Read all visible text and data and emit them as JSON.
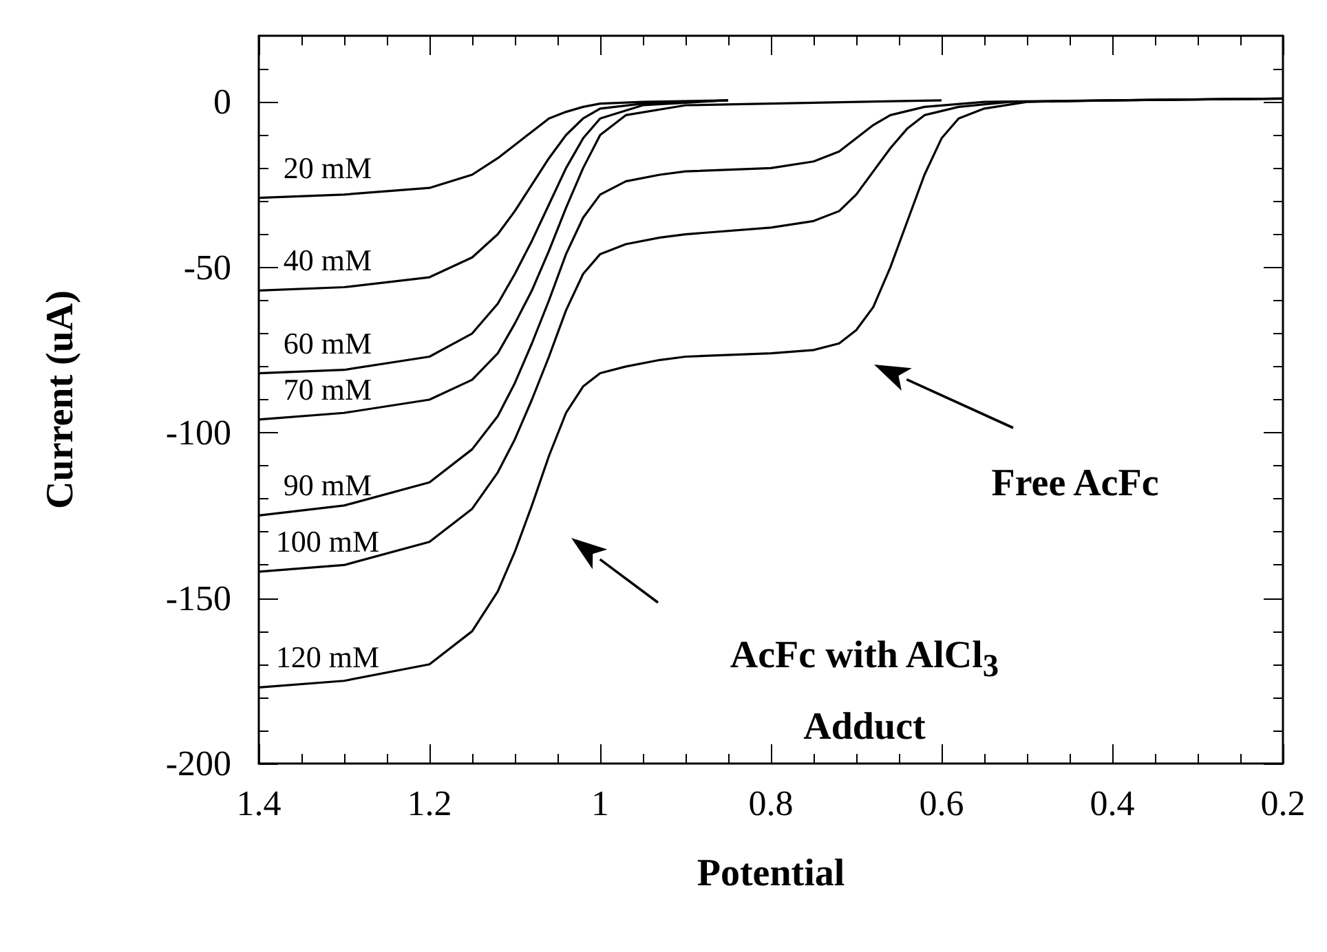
{
  "chart_data": {
    "type": "line",
    "xlabel": "Potential",
    "ylabel": "Current (uA)",
    "xlim": [
      1.4,
      0.2
    ],
    "xticks": [
      1.4,
      1.2,
      1,
      0.8,
      0.6,
      0.4,
      0.2
    ],
    "ylim": [
      -200,
      20
    ],
    "yticks": [
      -200,
      -150,
      -100,
      -50,
      0
    ],
    "grid": false,
    "legend": false,
    "marker": "none",
    "line_style": "solid",
    "series": [
      {
        "name": "20 mM",
        "color": "#000000",
        "x": [
          1.4,
          1.3,
          1.2,
          1.15,
          1.12,
          1.1,
          1.08,
          1.06,
          1.04,
          1.02,
          1.0,
          0.95,
          0.85
        ],
        "values": [
          -29,
          -28,
          -26,
          -22,
          -17,
          -13,
          -9,
          -5,
          -3,
          -1.5,
          -0.5,
          0,
          0.5
        ]
      },
      {
        "name": "40 mM",
        "color": "#000000",
        "x": [
          1.4,
          1.3,
          1.2,
          1.15,
          1.12,
          1.1,
          1.08,
          1.06,
          1.04,
          1.02,
          1.0,
          0.95,
          0.85
        ],
        "values": [
          -57,
          -56,
          -53,
          -47,
          -40,
          -33,
          -25,
          -17,
          -10,
          -5,
          -2,
          -0.5,
          0.5
        ]
      },
      {
        "name": "60 mM",
        "color": "#000000",
        "x": [
          1.4,
          1.3,
          1.2,
          1.15,
          1.12,
          1.1,
          1.08,
          1.06,
          1.04,
          1.02,
          1.0,
          0.95,
          0.85
        ],
        "values": [
          -82,
          -81,
          -77,
          -70,
          -61,
          -52,
          -42,
          -31,
          -20,
          -11,
          -5,
          -1,
          0.5
        ]
      },
      {
        "name": "70 mM",
        "color": "#000000",
        "x": [
          1.4,
          1.3,
          1.2,
          1.15,
          1.12,
          1.1,
          1.08,
          1.06,
          1.04,
          1.02,
          1.0,
          0.97,
          0.9,
          0.6
        ],
        "values": [
          -96,
          -94,
          -90,
          -84,
          -76,
          -67,
          -57,
          -45,
          -32,
          -20,
          -10,
          -4,
          -1,
          0.5
        ]
      },
      {
        "name": "90 mM",
        "color": "#000000",
        "x": [
          1.4,
          1.3,
          1.2,
          1.15,
          1.12,
          1.1,
          1.08,
          1.06,
          1.04,
          1.02,
          1.0,
          0.97,
          0.93,
          0.9,
          0.8,
          0.75,
          0.72,
          0.7,
          0.68,
          0.66,
          0.62,
          0.55,
          0.4,
          0.2
        ],
        "values": [
          -125,
          -122,
          -115,
          -105,
          -95,
          -85,
          -73,
          -60,
          -46,
          -35,
          -28,
          -24,
          -22,
          -21,
          -20,
          -18,
          -15,
          -11,
          -7,
          -4,
          -1.5,
          0,
          0.5,
          1
        ]
      },
      {
        "name": "100 mM",
        "color": "#000000",
        "x": [
          1.4,
          1.3,
          1.2,
          1.15,
          1.12,
          1.1,
          1.08,
          1.06,
          1.04,
          1.02,
          1.0,
          0.97,
          0.93,
          0.9,
          0.8,
          0.75,
          0.72,
          0.7,
          0.68,
          0.66,
          0.64,
          0.62,
          0.58,
          0.52,
          0.4,
          0.2
        ],
        "values": [
          -142,
          -140,
          -133,
          -123,
          -112,
          -102,
          -90,
          -77,
          -63,
          -52,
          -46,
          -43,
          -41,
          -40,
          -38,
          -36,
          -33,
          -28,
          -21,
          -14,
          -8,
          -4,
          -1.5,
          0,
          0.5,
          1
        ]
      },
      {
        "name": "120 mM",
        "color": "#000000",
        "x": [
          1.4,
          1.3,
          1.2,
          1.15,
          1.12,
          1.1,
          1.08,
          1.06,
          1.04,
          1.02,
          1.0,
          0.97,
          0.93,
          0.9,
          0.8,
          0.75,
          0.72,
          0.7,
          0.68,
          0.66,
          0.64,
          0.62,
          0.6,
          0.58,
          0.55,
          0.5,
          0.4,
          0.2
        ],
        "values": [
          -177,
          -175,
          -170,
          -160,
          -148,
          -136,
          -122,
          -107,
          -94,
          -86,
          -82,
          -80,
          -78,
          -77,
          -76,
          -75,
          -73,
          -69,
          -62,
          -50,
          -36,
          -22,
          -11,
          -5,
          -2,
          0,
          0.5,
          1
        ]
      }
    ],
    "annotations": [
      "Free AcFc",
      "AcFc with AlCl$_{3}$\nAdduct"
    ]
  }
}
